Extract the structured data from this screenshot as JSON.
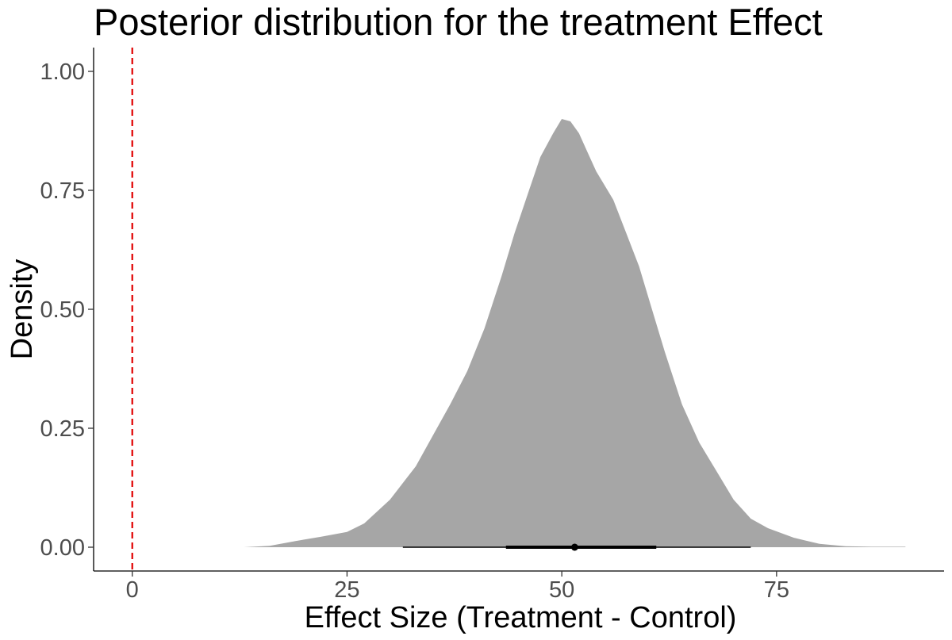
{
  "chart_data": {
    "type": "area",
    "title": "Posterior distribution for the treatment Effect",
    "xlabel": "Effect Size (Treatment - Control)",
    "ylabel": "Density",
    "xlim": [
      -4.5,
      94.5
    ],
    "ylim": [
      -0.05,
      1.05
    ],
    "x_ticks": [
      0,
      25,
      50,
      75
    ],
    "x_tick_labels": [
      "0",
      "25",
      "50",
      "75"
    ],
    "y_ticks": [
      0,
      0.25,
      0.5,
      0.75,
      1.0
    ],
    "y_tick_labels": [
      "0.00",
      "0.25",
      "0.50",
      "0.75",
      "1.00"
    ],
    "grid": false,
    "legend": "none",
    "series": [
      {
        "x": [
          7,
          10,
          13,
          16,
          19,
          22,
          25,
          27,
          30,
          33,
          35,
          37,
          39,
          41,
          43,
          44.5,
          46,
          47.5,
          49,
          50,
          51,
          52,
          53,
          54,
          55,
          56,
          57.5,
          59,
          60.5,
          62,
          64,
          66,
          68,
          70,
          72,
          74,
          77,
          80,
          83,
          86,
          90
        ],
        "y": [
          0,
          0,
          0,
          0.003,
          0.013,
          0.022,
          0.032,
          0.05,
          0.1,
          0.17,
          0.235,
          0.3,
          0.37,
          0.46,
          0.57,
          0.66,
          0.74,
          0.82,
          0.87,
          0.9,
          0.895,
          0.87,
          0.83,
          0.79,
          0.76,
          0.73,
          0.66,
          0.59,
          0.5,
          0.41,
          0.3,
          0.22,
          0.16,
          0.1,
          0.06,
          0.04,
          0.02,
          0.007,
          0.002,
          0.001,
          0.001
        ],
        "fill": "#a6a6a6"
      }
    ],
    "reference_line": {
      "x": 0,
      "color": "#e00000",
      "style": "dashed"
    },
    "interval": {
      "point": 51.5,
      "inner": [
        43.5,
        61
      ],
      "outer": [
        31.5,
        72
      ],
      "color": "#000000"
    }
  }
}
